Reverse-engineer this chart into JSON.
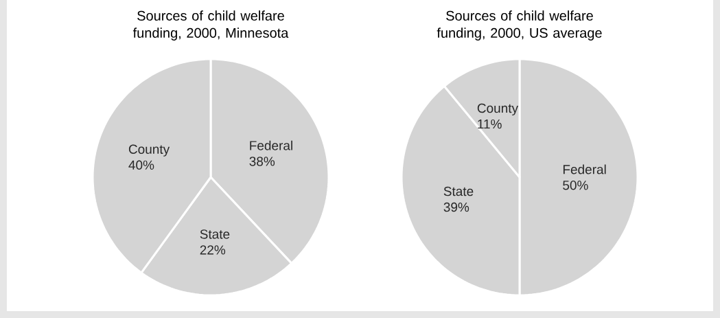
{
  "chart_data": [
    {
      "type": "pie",
      "title": "Sources of child welfare funding, 2000, Minnesota",
      "categories": [
        "Federal",
        "State",
        "County"
      ],
      "values": [
        38,
        22,
        40
      ],
      "colors": [
        "#d4d4d4",
        "#d4d4d4",
        "#d4d4d4"
      ],
      "value_labels": [
        "38%",
        "22%",
        "40%"
      ]
    },
    {
      "type": "pie",
      "title": "Sources of child welfare funding, 2000, US average",
      "categories": [
        "Federal",
        "State",
        "County"
      ],
      "values": [
        50,
        39,
        11
      ],
      "colors": [
        "#d4d4d4",
        "#d4d4d4",
        "#d4d4d4"
      ],
      "value_labels": [
        "50%",
        "39%",
        "11%"
      ]
    }
  ]
}
